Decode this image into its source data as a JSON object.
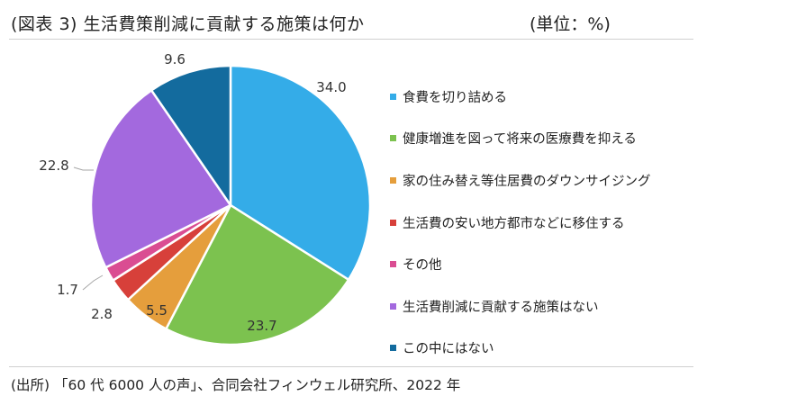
{
  "header": {
    "title": "(図表 3)  生活費策削減に貢献する施策は何か",
    "unit": "(単位：%)"
  },
  "footer": {
    "source": "(出所) 「60 代 6000 人の声」、合同会社フィンウェル研究所、2022 年"
  },
  "chart_data": {
    "type": "pie",
    "title": "生活費策削減に貢献する施策は何か",
    "unit": "%",
    "start": "12 o'clock, clockwise",
    "legend_position": "right",
    "slices": [
      {
        "label": "食費を切り詰める",
        "value": 34.0,
        "display": "34.0",
        "color": "#34ACE8"
      },
      {
        "label": "健康増進を図って将来の医療費を抑える",
        "value": 23.7,
        "display": "23.7",
        "color": "#7CC24F"
      },
      {
        "label": "家の住み替え等住居費のダウンサイジング",
        "value": 5.5,
        "display": "5.5",
        "color": "#E59E3C"
      },
      {
        "label": "生活費の安い地方都市などに移住する",
        "value": 2.8,
        "display": "2.8",
        "color": "#D7403A"
      },
      {
        "label": "その他",
        "value": 1.7,
        "display": "1.7",
        "color": "#DA4D92"
      },
      {
        "label": "生活費削減に貢献する施策はない",
        "value": 22.8,
        "display": "22.8",
        "color": "#A369DE"
      },
      {
        "label": "この中にはない",
        "value": 9.6,
        "display": "9.6",
        "color": "#136B9E"
      }
    ]
  }
}
